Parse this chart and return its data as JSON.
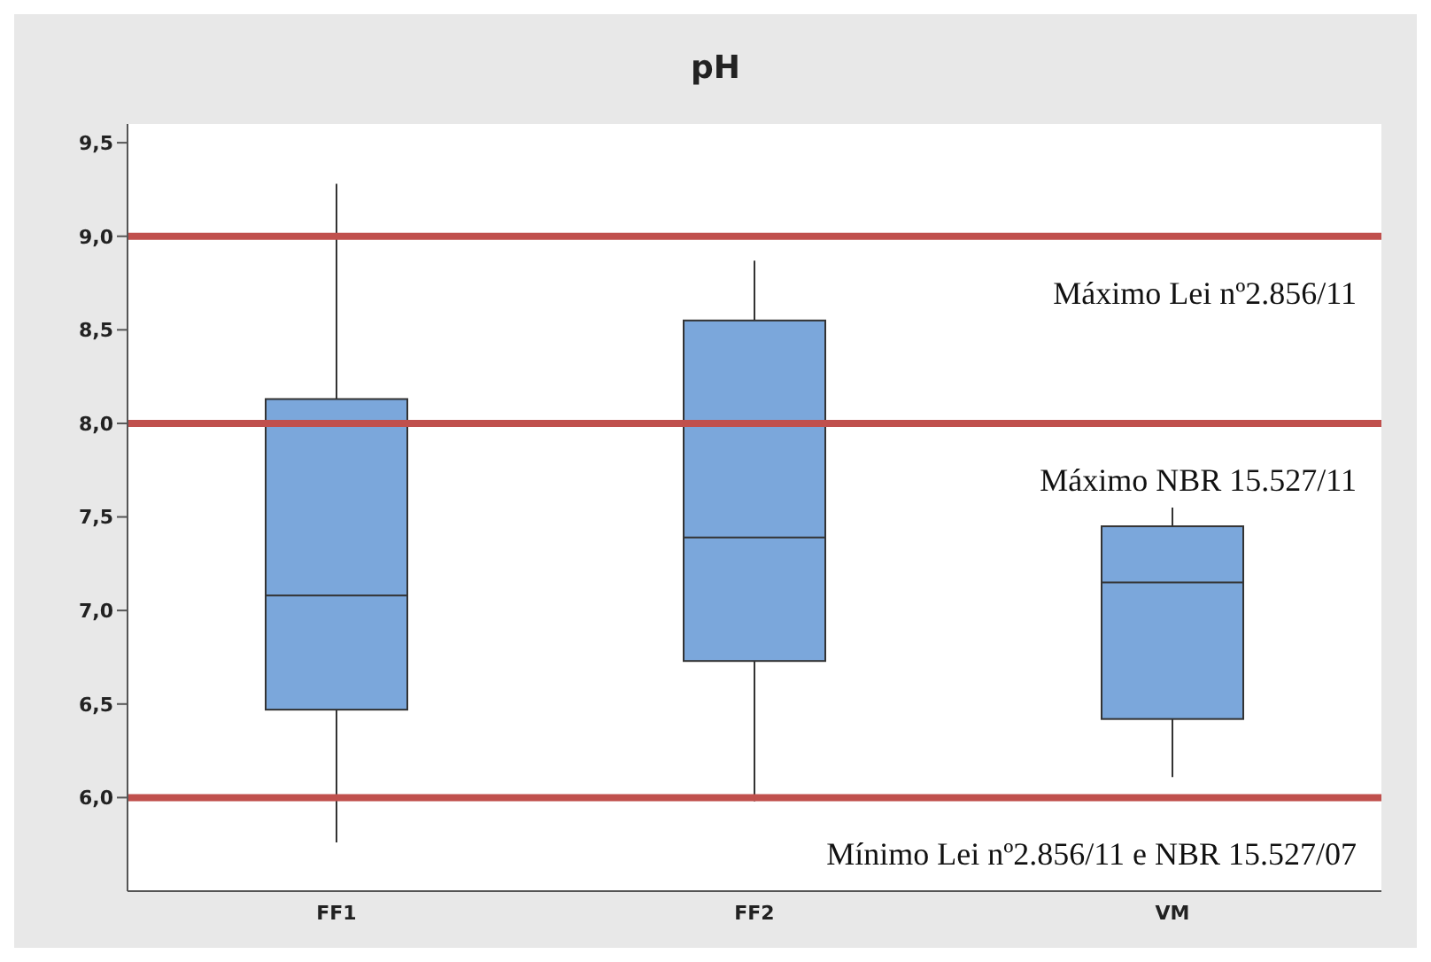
{
  "chart_data": {
    "type": "box",
    "title": "pH",
    "categories": [
      "FF1",
      "FF2",
      "VM"
    ],
    "color": "#7ba7db",
    "boxes": [
      {
        "low": 5.76,
        "q1": 6.47,
        "median": 7.08,
        "q3": 8.13,
        "high": 9.28
      },
      {
        "low": 5.98,
        "q1": 6.73,
        "median": 7.39,
        "q3": 8.55,
        "high": 8.87
      },
      {
        "low": 6.11,
        "q1": 6.42,
        "median": 7.15,
        "q3": 7.45,
        "high": 7.55
      }
    ],
    "ylim": [
      5.5,
      9.6
    ],
    "yticks": [
      {
        "value": 6,
        "label": "6,0"
      },
      {
        "value": 6.5,
        "label": "6,5"
      },
      {
        "value": 7,
        "label": "7,0"
      },
      {
        "value": 7.5,
        "label": "7,5"
      },
      {
        "value": 8,
        "label": "8,0"
      },
      {
        "value": 8.5,
        "label": "8,5"
      },
      {
        "value": 9,
        "label": "9,0"
      },
      {
        "value": 9.5,
        "label": "9,5"
      }
    ],
    "ref_lines": [
      {
        "axis": "y",
        "value": 9,
        "label": "Máximo Lei nº2.856/11",
        "color": "#c0504d"
      },
      {
        "axis": "y",
        "value": 8,
        "label": "Máximo NBR 15.527/11",
        "color": "#c0504d"
      },
      {
        "axis": "y",
        "value": 6,
        "label": "Mínimo Lei nº2.856/11 e NBR 15.527/07",
        "color": "#c0504d"
      }
    ],
    "grid": false
  }
}
